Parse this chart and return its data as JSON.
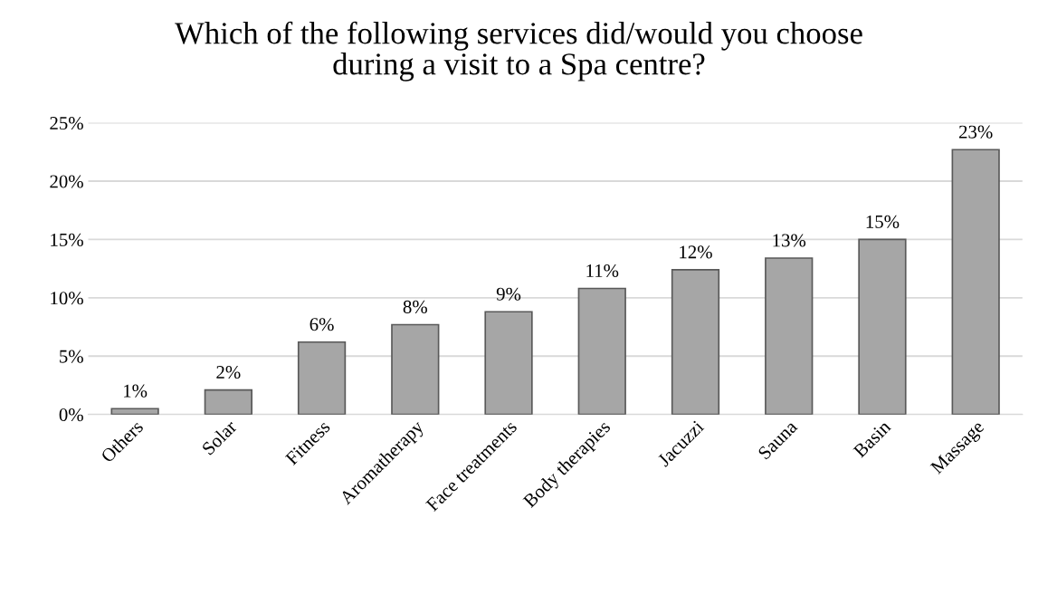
{
  "chart_data": {
    "type": "bar",
    "title": "Which of the following services did/would you choose\nduring a visit to a Spa centre?",
    "categories": [
      "Others",
      "Solar",
      "Fitness",
      "Aromatherapy",
      "Face treatments",
      "Body therapies",
      "Jacuzzi",
      "Sauna",
      "Basin",
      "Massage"
    ],
    "values": [
      0.5,
      2.1,
      6.2,
      7.7,
      8.8,
      10.8,
      12.4,
      13.4,
      15.0,
      22.7
    ],
    "value_labels": [
      "1%",
      "2%",
      "6%",
      "8%",
      "9%",
      "11%",
      "12%",
      "13%",
      "15%",
      "23%"
    ],
    "color": "#a6a6a6",
    "ylim": [
      0,
      25
    ],
    "yticks": [
      {
        "value": 0,
        "label": "0%"
      },
      {
        "value": 5,
        "label": "5%"
      },
      {
        "value": 10,
        "label": "10%"
      },
      {
        "value": 15,
        "label": "15%"
      },
      {
        "value": 20,
        "label": "20%"
      },
      {
        "value": 25,
        "label": "25%"
      }
    ],
    "grid": "y",
    "legend": false
  }
}
